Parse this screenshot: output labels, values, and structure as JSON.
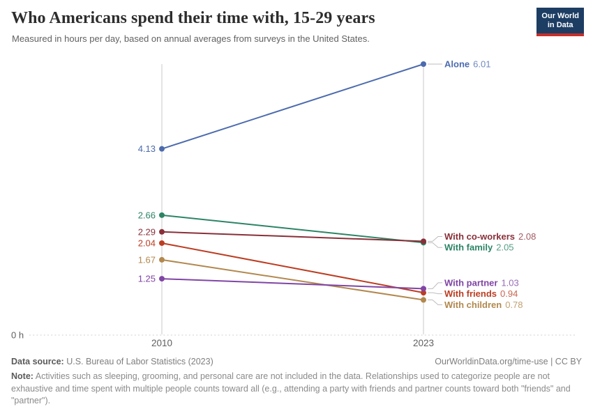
{
  "header": {
    "title": "Who Americans spend their time with, 15-29 years",
    "subtitle": "Measured in hours per day, based on annual averages from surveys in the United States.",
    "logo": {
      "line1": "Our World",
      "line2": "in Data",
      "bg_color": "#1d3d63",
      "accent_color": "#c5302b"
    }
  },
  "chart_data": {
    "type": "line",
    "subtype": "slope",
    "x": [
      "2010",
      "2023"
    ],
    "series": [
      {
        "name": "Alone",
        "values": [
          4.13,
          6.01
        ],
        "color": "#4C6BAE"
      },
      {
        "name": "With family",
        "values": [
          2.66,
          2.05
        ],
        "color": "#2C8465"
      },
      {
        "name": "With co-workers",
        "values": [
          2.29,
          2.08
        ],
        "color": "#883039"
      },
      {
        "name": "With friends",
        "values": [
          2.04,
          0.94
        ],
        "color": "#BC3D22"
      },
      {
        "name": "With children",
        "values": [
          1.67,
          0.78
        ],
        "color": "#B2884E"
      },
      {
        "name": "With partner",
        "values": [
          1.25,
          1.03
        ],
        "color": "#8045A5"
      }
    ],
    "ylim": [
      0,
      6.01
    ],
    "zero_label": "0 h",
    "grid": false,
    "legend_position": "inline-right",
    "axis_color": "#c9c9c9",
    "zero_line_color": "#cfcfcf",
    "tick_label_color": "#5f5f5f",
    "connector_color": "#bdbdbd"
  },
  "footer": {
    "datasource_label": "Data source:",
    "datasource_text": " U.S. Bureau of Labor Statistics (2023)",
    "link_text": "OurWorldinData.org/time-use | CC BY",
    "note_label": "Note:",
    "note_text": " Activities such as sleeping, grooming, and personal care are not included in the data. Relationships used to categorize people are not exhaustive and time spent with multiple people counts toward all (e.g., attending a party with friends and partner counts toward both \"friends\" and \"partner\")."
  }
}
